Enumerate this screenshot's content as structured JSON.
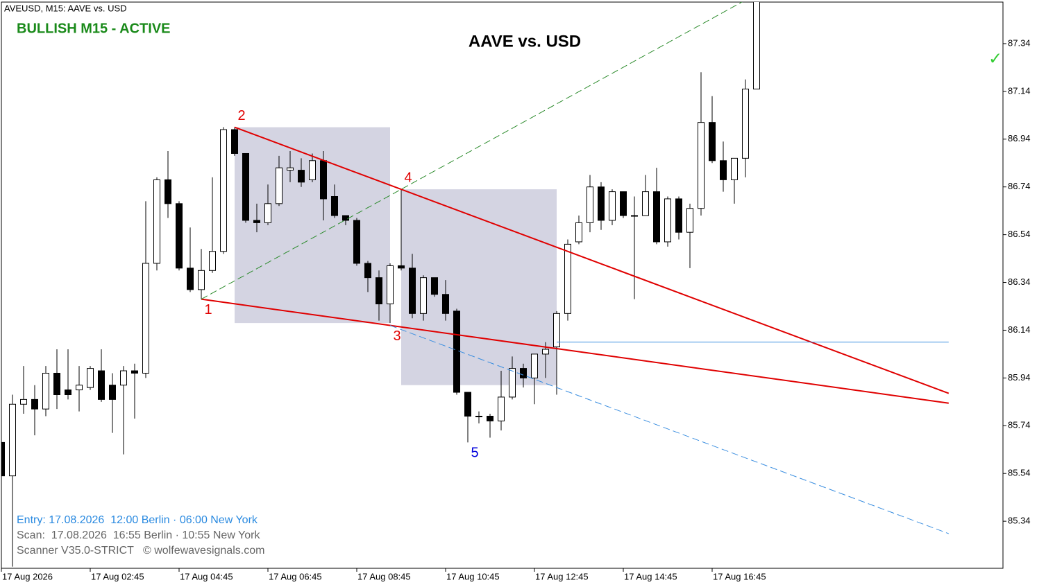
{
  "chart_data": {
    "type": "candlestick",
    "header": "AVEUSD, M15:  AAVE vs. USD",
    "status": "BULLISH M15 - ACTIVE",
    "status_color": "#1a8a1a",
    "title": "AAVE vs. USD",
    "status_icon": "✓",
    "status_icon_color": "#33cc33",
    "info_lines": [
      {
        "text": "Entry: 17.08.2026  12:00 Berlin · 06:00 New York",
        "color": "#2a8ae0"
      },
      {
        "text": "Scan:  17.08.2026  16:55 Berlin · 10:55 New York",
        "color": "#666666"
      },
      {
        "text": "Scanner V35.0-STRICT   © wolfewavesignals.com",
        "color": "#666666"
      }
    ],
    "categories": [
      "17 Aug 2026",
      null,
      null,
      null,
      null,
      null,
      null,
      null,
      "17 Aug 02:45",
      null,
      null,
      null,
      null,
      null,
      null,
      null,
      "17 Aug 04:45",
      null,
      null,
      null,
      null,
      null,
      null,
      null,
      "17 Aug 06:45",
      null,
      null,
      null,
      null,
      null,
      null,
      null,
      "17 Aug 08:45",
      null,
      null,
      null,
      null,
      null,
      null,
      null,
      "17 Aug 10:45",
      null,
      null,
      null,
      null,
      null,
      null,
      null,
      "17 Aug 12:45",
      null,
      null,
      null,
      null,
      null,
      null,
      null,
      "17 Aug 14:45",
      null,
      null,
      null,
      null,
      null,
      null,
      null,
      "17 Aug 16:45",
      null,
      null,
      null,
      null
    ],
    "open": [
      85.67,
      85.53,
      85.83,
      85.85,
      85.81,
      85.96,
      85.89,
      85.89,
      85.9,
      85.97,
      85.91,
      85.91,
      85.97,
      85.96,
      86.42,
      86.77,
      86.67,
      86.4,
      86.31,
      86.39,
      86.47,
      86.98,
      86.88,
      86.6,
      86.59,
      86.67,
      86.81,
      86.81,
      86.77,
      86.85,
      86.7,
      86.62,
      86.6,
      86.42,
      86.36,
      86.25,
      86.41,
      86.4,
      86.21,
      86.36,
      86.29,
      86.22,
      85.88,
      85.78,
      85.78,
      85.76,
      85.86,
      85.98,
      85.94,
      86.04,
      86.07,
      86.21,
      86.51,
      86.59,
      86.74,
      86.6,
      86.72,
      86.62,
      86.62,
      86.72,
      86.51,
      86.69,
      86.55,
      86.65,
      87.01,
      86.85,
      86.77,
      86.86,
      87.15
    ],
    "high": [
      85.68,
      85.87,
      85.99,
      85.91,
      85.99,
      86.06,
      86.06,
      85.99,
      85.99,
      86.06,
      85.96,
      85.99,
      86.0,
      86.68,
      86.78,
      86.89,
      86.68,
      86.57,
      86.48,
      86.78,
      86.99,
      86.99,
      86.88,
      86.67,
      86.75,
      86.87,
      86.89,
      86.86,
      86.88,
      86.89,
      86.75,
      86.62,
      86.61,
      86.43,
      86.39,
      86.42,
      86.73,
      86.46,
      86.37,
      86.36,
      86.35,
      86.23,
      85.88,
      85.8,
      85.79,
      85.97,
      86.03,
      86.0,
      86.04,
      86.09,
      86.22,
      86.52,
      86.62,
      86.79,
      86.76,
      86.73,
      86.72,
      86.7,
      86.79,
      86.82,
      86.7,
      86.7,
      86.67,
      87.22,
      87.12,
      86.93,
      86.86,
      87.19,
      87.56
    ],
    "low": [
      85.53,
      85.15,
      85.79,
      85.7,
      85.78,
      85.81,
      85.85,
      85.8,
      85.89,
      85.84,
      85.71,
      85.62,
      85.77,
      85.94,
      86.39,
      86.61,
      86.39,
      86.3,
      86.27,
      86.38,
      86.46,
      86.87,
      86.59,
      86.55,
      86.58,
      86.66,
      86.76,
      86.74,
      86.76,
      86.6,
      86.61,
      86.58,
      86.41,
      86.3,
      86.18,
      86.17,
      86.39,
      86.19,
      86.18,
      86.28,
      86.18,
      85.87,
      85.67,
      85.75,
      85.69,
      85.72,
      85.85,
      85.9,
      85.83,
      85.94,
      85.87,
      86.18,
      86.5,
      86.55,
      86.56,
      86.58,
      86.61,
      86.27,
      86.62,
      86.5,
      86.49,
      86.52,
      86.4,
      86.62,
      86.84,
      86.72,
      86.67,
      86.78,
      87.15
    ],
    "close": [
      85.53,
      85.83,
      85.85,
      85.81,
      85.96,
      85.87,
      85.87,
      85.91,
      85.98,
      85.85,
      85.85,
      85.97,
      85.96,
      86.42,
      86.77,
      86.67,
      86.4,
      86.31,
      86.39,
      86.47,
      86.98,
      86.88,
      86.6,
      86.59,
      86.67,
      86.82,
      86.82,
      86.76,
      86.85,
      86.69,
      86.62,
      86.6,
      86.42,
      86.36,
      86.25,
      86.41,
      86.4,
      86.21,
      86.36,
      86.29,
      86.21,
      85.88,
      85.78,
      85.78,
      85.76,
      85.86,
      85.98,
      85.94,
      86.04,
      86.06,
      86.21,
      86.5,
      86.59,
      86.74,
      86.6,
      86.72,
      86.62,
      86.62,
      86.72,
      86.51,
      86.69,
      86.55,
      86.65,
      87.01,
      86.85,
      86.77,
      86.86,
      87.15,
      87.53
    ],
    "ylim": [
      85.143,
      87.514
    ],
    "yticks": [
      85.34,
      85.54,
      85.74,
      85.94,
      86.14,
      86.34,
      86.54,
      86.74,
      86.94,
      87.14,
      87.34
    ],
    "pattern": {
      "points": [
        {
          "label": "1",
          "x": 18,
          "y": 86.27,
          "pos": "below",
          "color": "#e00000"
        },
        {
          "label": "2",
          "x": 21,
          "y": 86.99,
          "pos": "above",
          "color": "#e00000"
        },
        {
          "label": "3",
          "x": 35,
          "y": 86.16,
          "pos": "below",
          "color": "#e00000"
        },
        {
          "label": "4",
          "x": 36,
          "y": 86.73,
          "pos": "above",
          "color": "#e00000"
        },
        {
          "label": "5",
          "x": 42,
          "y": 85.67,
          "pos": "below",
          "color": "#0000dd"
        }
      ],
      "target_x": 85.3,
      "level": 86.09,
      "level_start": 50,
      "zones": [
        {
          "x0": 21,
          "x1": 35,
          "y0": 86.99,
          "y1": 86.17
        },
        {
          "x0": 36,
          "x1": 50,
          "y0": 86.73,
          "y1": 85.91
        }
      ]
    }
  }
}
